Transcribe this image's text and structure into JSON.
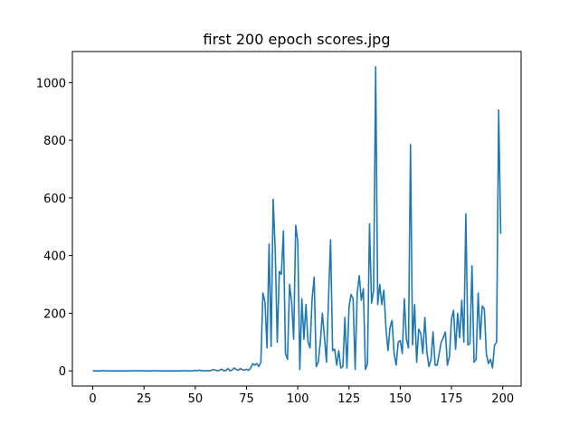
{
  "chart_data": {
    "type": "line",
    "title": "first 200 epoch scores.jpg",
    "series": [
      {
        "color": "#1f77b4",
        "values": [
          0,
          0,
          0,
          0,
          0,
          1,
          0,
          0,
          0,
          0,
          0,
          0,
          0,
          0,
          0,
          0,
          0,
          0,
          0,
          0,
          1,
          0,
          0,
          0,
          1,
          0,
          0,
          0,
          0,
          0,
          1,
          0,
          0,
          0,
          0,
          0,
          0,
          0,
          0,
          0,
          0,
          0,
          0,
          0,
          0,
          1,
          0,
          0,
          0,
          0,
          2,
          0,
          3,
          0,
          1,
          0,
          1,
          0,
          2,
          5,
          2,
          0,
          3,
          6,
          0,
          2,
          8,
          0,
          3,
          10,
          5,
          2,
          8,
          4,
          3,
          6,
          2,
          10,
          25,
          20,
          25,
          15,
          30,
          270,
          240,
          80,
          440,
          85,
          595,
          420,
          100,
          345,
          335,
          485,
          60,
          40,
          300,
          240,
          110,
          505,
          450,
          5,
          250,
          110,
          230,
          100,
          80,
          250,
          325,
          15,
          30,
          100,
          200,
          120,
          30,
          250,
          455,
          70,
          75,
          20,
          70,
          10,
          15,
          185,
          10,
          220,
          265,
          250,
          5,
          270,
          330,
          245,
          285,
          5,
          25,
          510,
          235,
          280,
          1055,
          230,
          300,
          230,
          280,
          150,
          70,
          150,
          175,
          60,
          20,
          100,
          105,
          60,
          250,
          110,
          80,
          785,
          90,
          230,
          30,
          145,
          130,
          60,
          185,
          65,
          15,
          40,
          135,
          20,
          20,
          60,
          100,
          115,
          135,
          20,
          50,
          180,
          210,
          75,
          200,
          115,
          245,
          100,
          545,
          90,
          95,
          365,
          30,
          40,
          270,
          110,
          225,
          215,
          60,
          25,
          40,
          10,
          90,
          100,
          905,
          475
        ]
      }
    ],
    "xlim": [
      -9.95,
      208.95
    ],
    "xticks": [
      0,
      25,
      50,
      75,
      100,
      125,
      150,
      175,
      200
    ],
    "ylim": [
      -52.75,
      1107.75
    ],
    "yticks": [
      0,
      200,
      400,
      600,
      800,
      1000
    ]
  }
}
